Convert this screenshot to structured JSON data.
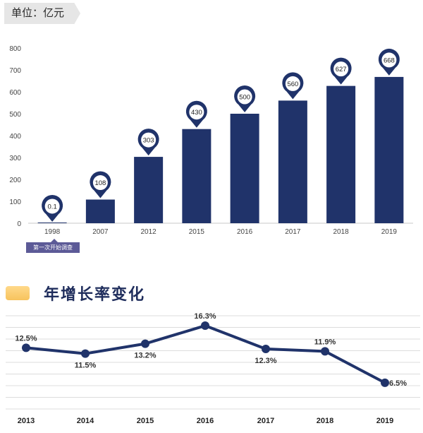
{
  "unit_label": "单位：亿元",
  "note_tag": "第一次开始调查",
  "section_title": "年增长率变化",
  "colors": {
    "bar": "#20336a",
    "line": "#20336a",
    "grid": "#dcdcdc",
    "accent": "#f7c35d",
    "tag": "#5c5a97"
  },
  "chart_data": [
    {
      "type": "bar",
      "categories": [
        "1998",
        "2007",
        "2012",
        "2015",
        "2016",
        "2017",
        "2018",
        "2019"
      ],
      "values": [
        0.1,
        108,
        303,
        430,
        500,
        560,
        627,
        668
      ],
      "value_labels": [
        "0.1",
        "108",
        "303",
        "430",
        "500",
        "560",
        "627",
        "668"
      ],
      "title": "",
      "xlabel": "",
      "ylabel": "",
      "yticks": [
        0,
        100,
        200,
        300,
        400,
        500,
        600,
        700,
        800
      ],
      "ylim": [
        0,
        800
      ],
      "grid": false
    },
    {
      "type": "line",
      "categories": [
        "2013",
        "2014",
        "2015",
        "2016",
        "2017",
        "2018",
        "2019"
      ],
      "values": [
        12.5,
        11.5,
        13.2,
        16.3,
        12.3,
        11.9,
        6.5
      ],
      "value_labels": [
        "12.5%",
        "11.5%",
        "13.2%",
        "16.3%",
        "12.3%",
        "11.9%",
        "6.5%"
      ],
      "title": "",
      "xlabel": "",
      "ylabel": "",
      "ylim": [
        2,
        18
      ],
      "grid": true
    }
  ]
}
